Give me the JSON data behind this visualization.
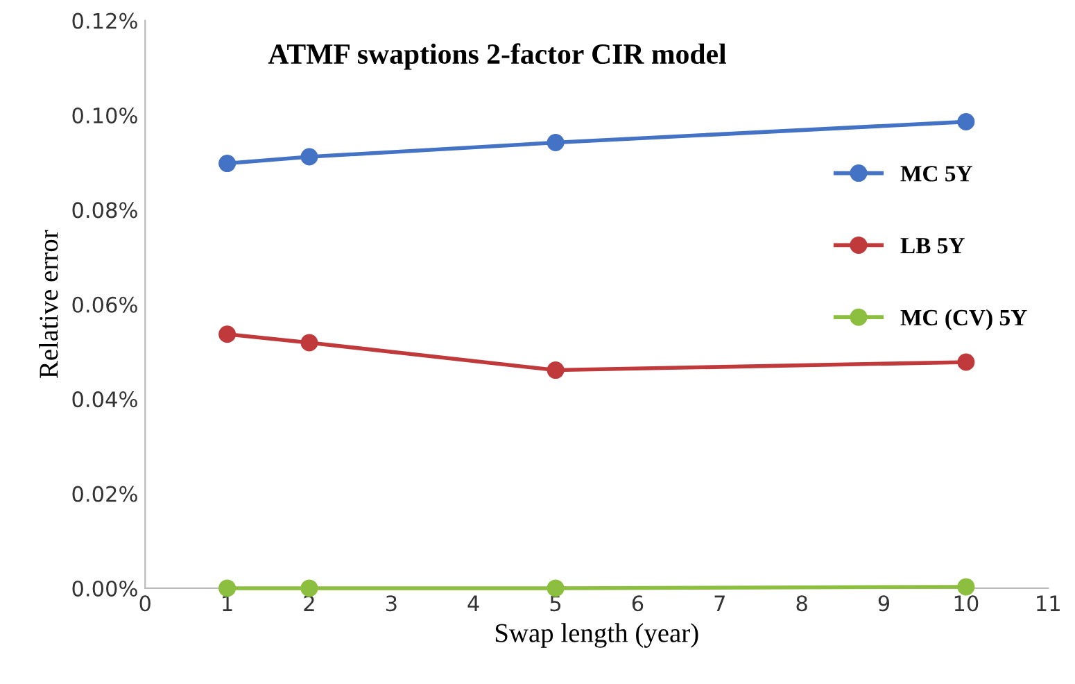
{
  "chart_data": {
    "type": "line",
    "title": "ATMF swaptions 2-factor CIR model",
    "xlabel": "Swap length (year)",
    "ylabel": "Relative error",
    "x": [
      1,
      2,
      5,
      10
    ],
    "series": [
      {
        "name": "MC 5Y",
        "color": "#4472c4",
        "values": [
          0.0898,
          0.0912,
          0.0942,
          0.0986
        ]
      },
      {
        "name": "LB 5Y",
        "color": "#c0393b",
        "values": [
          0.0537,
          0.0519,
          0.0461,
          0.0478
        ]
      },
      {
        "name": "MC (CV) 5Y",
        "color": "#8cbf3f",
        "values": [
          0.0,
          0.0,
          0.0,
          0.0003
        ]
      }
    ],
    "xlim": [
      0,
      11
    ],
    "xticks": [
      0,
      1,
      2,
      3,
      4,
      5,
      6,
      7,
      8,
      9,
      10,
      11
    ],
    "ylim": [
      0,
      0.12
    ],
    "yticks": [
      {
        "value": 0,
        "label": "0.00%"
      },
      {
        "value": 0.02,
        "label": "0.02%"
      },
      {
        "value": 0.04,
        "label": "0.04%"
      },
      {
        "value": 0.06,
        "label": "0.06%"
      },
      {
        "value": 0.08,
        "label": "0.08%"
      },
      {
        "value": 0.1,
        "label": "0.10%"
      },
      {
        "value": 0.12,
        "label": "0.12%"
      }
    ],
    "grid": false,
    "legend": "right",
    "marker": "circle",
    "line_style": "solid"
  }
}
